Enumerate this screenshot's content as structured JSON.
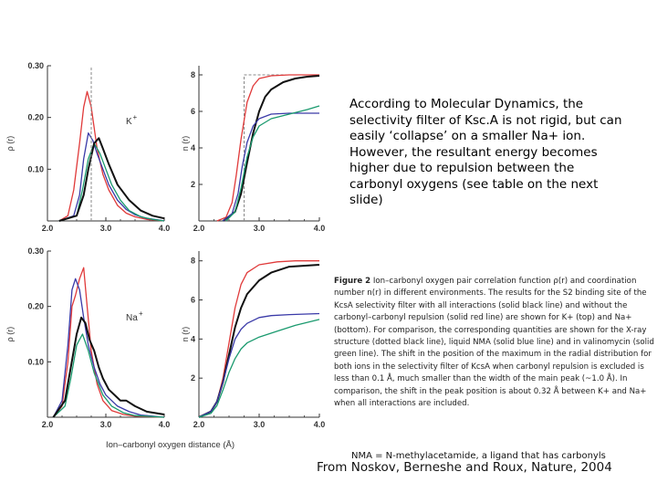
{
  "chart_data": [
    {
      "id": "rho-K",
      "type": "line",
      "ylabel": "ρ (r)",
      "label": "K",
      "label_sup": "+",
      "xlim": [
        2.0,
        4.0
      ],
      "ylim": [
        0,
        0.3
      ],
      "xticks": [
        "2.0",
        "3.0",
        "4.0"
      ],
      "yticks": [
        {
          "v": 0.1,
          "t": "0.10"
        },
        {
          "v": 0.2,
          "t": "0.20"
        },
        {
          "v": 0.3,
          "t": "0.30"
        }
      ],
      "series": [
        {
          "color": "#e03a3a",
          "dashed": false,
          "x": [
            2.2,
            2.35,
            2.45,
            2.55,
            2.62,
            2.68,
            2.75,
            2.85,
            2.95,
            3.05,
            3.2,
            3.35,
            3.5,
            3.7,
            3.9,
            4.0
          ],
          "y": [
            0,
            0.01,
            0.06,
            0.15,
            0.22,
            0.25,
            0.22,
            0.14,
            0.09,
            0.06,
            0.03,
            0.015,
            0.008,
            0.003,
            0.001,
            0
          ]
        },
        {
          "color": "#3a3aa8",
          "dashed": false,
          "x": [
            2.2,
            2.45,
            2.55,
            2.62,
            2.7,
            2.78,
            2.85,
            2.95,
            3.05,
            3.2,
            3.35,
            3.5,
            3.7,
            3.9,
            4.0
          ],
          "y": [
            0,
            0.01,
            0.05,
            0.12,
            0.17,
            0.155,
            0.13,
            0.1,
            0.07,
            0.04,
            0.022,
            0.012,
            0.005,
            0.002,
            0
          ]
        },
        {
          "color": "#1a9a6e",
          "dashed": false,
          "x": [
            2.2,
            2.5,
            2.6,
            2.7,
            2.8,
            2.9,
            3.0,
            3.1,
            3.25,
            3.4,
            3.6,
            3.8,
            4.0
          ],
          "y": [
            0,
            0.01,
            0.06,
            0.12,
            0.15,
            0.13,
            0.1,
            0.07,
            0.04,
            0.02,
            0.008,
            0.003,
            0
          ]
        },
        {
          "color": "#111111",
          "dashed": false,
          "x": [
            2.2,
            2.5,
            2.62,
            2.7,
            2.8,
            2.88,
            2.95,
            3.05,
            3.2,
            3.4,
            3.6,
            3.8,
            4.0
          ],
          "y": [
            0,
            0.01,
            0.05,
            0.1,
            0.15,
            0.16,
            0.14,
            0.11,
            0.07,
            0.04,
            0.02,
            0.01,
            0.005
          ]
        },
        {
          "color": "#888888",
          "dashed": true,
          "x": [
            2.75,
            2.75
          ],
          "y": [
            0,
            0.3
          ]
        }
      ]
    },
    {
      "id": "n-K",
      "type": "line",
      "ylabel": "n (r)",
      "xlim": [
        2.0,
        4.0
      ],
      "ylim": [
        0,
        8.5
      ],
      "xticks": [
        "2.0",
        "3.0",
        "4.0"
      ],
      "yticks": [
        {
          "v": 2,
          "t": "2"
        },
        {
          "v": 4,
          "t": "4"
        },
        {
          "v": 6,
          "t": "6"
        },
        {
          "v": 8,
          "t": "8"
        }
      ],
      "series": [
        {
          "color": "#888888",
          "dashed": true,
          "x": [
            2.75,
            2.75,
            3.0,
            4.0
          ],
          "y": [
            0,
            8,
            8,
            8
          ]
        },
        {
          "color": "#e03a3a",
          "dashed": false,
          "x": [
            2.3,
            2.45,
            2.55,
            2.62,
            2.7,
            2.8,
            2.9,
            3.0,
            3.2,
            3.5,
            4.0
          ],
          "y": [
            0,
            0.2,
            1.0,
            2.5,
            4.5,
            6.5,
            7.4,
            7.8,
            7.95,
            8.0,
            8.0
          ]
        },
        {
          "color": "#111111",
          "dashed": false,
          "x": [
            2.4,
            2.6,
            2.7,
            2.8,
            2.9,
            3.0,
            3.1,
            3.2,
            3.4,
            3.6,
            3.8,
            4.0
          ],
          "y": [
            0,
            0.5,
            1.5,
            3.2,
            4.8,
            6.0,
            6.8,
            7.2,
            7.6,
            7.8,
            7.9,
            7.95
          ]
        },
        {
          "color": "#3a3aa8",
          "dashed": false,
          "x": [
            2.4,
            2.55,
            2.65,
            2.72,
            2.8,
            2.9,
            3.0,
            3.2,
            3.5,
            4.0
          ],
          "y": [
            0,
            0.4,
            1.5,
            3.0,
            4.3,
            5.2,
            5.6,
            5.85,
            5.9,
            5.9
          ]
        },
        {
          "color": "#1a9a6e",
          "dashed": false,
          "x": [
            2.45,
            2.6,
            2.7,
            2.8,
            2.9,
            3.0,
            3.2,
            3.5,
            3.8,
            4.0
          ],
          "y": [
            0,
            0.5,
            1.8,
            3.5,
            4.6,
            5.2,
            5.6,
            5.85,
            6.1,
            6.3
          ]
        }
      ]
    },
    {
      "id": "rho-Na",
      "type": "line",
      "ylabel": "ρ (r)",
      "label": "Na",
      "label_sup": "+",
      "xlim": [
        2.0,
        4.0
      ],
      "ylim": [
        0,
        0.3
      ],
      "xticks": [
        "2.0",
        "3.0",
        "4.0"
      ],
      "yticks": [
        {
          "v": 0.1,
          "t": "0.10"
        },
        {
          "v": 0.2,
          "t": "0.20"
        },
        {
          "v": 0.3,
          "t": "0.30"
        }
      ],
      "series": [
        {
          "color": "#e03a3a",
          "dashed": false,
          "x": [
            2.1,
            2.25,
            2.35,
            2.42,
            2.48,
            2.55,
            2.62,
            2.68,
            2.75,
            2.85,
            2.95,
            3.1,
            3.3,
            3.5,
            4.0
          ],
          "y": [
            0,
            0.02,
            0.1,
            0.2,
            0.22,
            0.25,
            0.27,
            0.2,
            0.12,
            0.06,
            0.03,
            0.012,
            0.005,
            0.002,
            0
          ]
        },
        {
          "color": "#3a3aa8",
          "dashed": false,
          "x": [
            2.1,
            2.25,
            2.35,
            2.42,
            2.48,
            2.55,
            2.62,
            2.7,
            2.8,
            2.9,
            3.0,
            3.2,
            3.4,
            3.6,
            4.0
          ],
          "y": [
            0,
            0.03,
            0.13,
            0.23,
            0.25,
            0.23,
            0.18,
            0.13,
            0.09,
            0.06,
            0.04,
            0.02,
            0.01,
            0.004,
            0
          ]
        },
        {
          "color": "#1a9a6e",
          "dashed": false,
          "x": [
            2.1,
            2.3,
            2.4,
            2.5,
            2.6,
            2.7,
            2.8,
            2.95,
            3.1,
            3.3,
            3.5,
            4.0
          ],
          "y": [
            0,
            0.02,
            0.07,
            0.13,
            0.15,
            0.12,
            0.08,
            0.04,
            0.02,
            0.008,
            0.003,
            0
          ]
        },
        {
          "color": "#111111",
          "dashed": false,
          "x": [
            2.1,
            2.3,
            2.4,
            2.5,
            2.58,
            2.65,
            2.72,
            2.8,
            2.88,
            2.95,
            3.05,
            3.15,
            3.25,
            3.35,
            3.5,
            3.6,
            3.7,
            4.0
          ],
          "y": [
            0,
            0.03,
            0.09,
            0.15,
            0.18,
            0.17,
            0.14,
            0.12,
            0.09,
            0.07,
            0.05,
            0.04,
            0.03,
            0.03,
            0.02,
            0.015,
            0.01,
            0.005
          ]
        }
      ]
    },
    {
      "id": "n-Na",
      "type": "line",
      "ylabel": "n (r)",
      "xlim": [
        2.0,
        4.0
      ],
      "ylim": [
        0,
        8.5
      ],
      "xticks": [
        "2.0",
        "3.0",
        "4.0"
      ],
      "yticks": [
        {
          "v": 2,
          "t": "2"
        },
        {
          "v": 4,
          "t": "4"
        },
        {
          "v": 6,
          "t": "6"
        },
        {
          "v": 8,
          "t": "8"
        }
      ],
      "series": [
        {
          "color": "#e03a3a",
          "dashed": false,
          "x": [
            2.0,
            2.2,
            2.3,
            2.4,
            2.5,
            2.6,
            2.7,
            2.8,
            3.0,
            3.3,
            3.6,
            4.0
          ],
          "y": [
            0,
            0.3,
            0.8,
            2.0,
            3.8,
            5.6,
            6.8,
            7.4,
            7.8,
            7.95,
            8.0,
            8.0
          ]
        },
        {
          "color": "#111111",
          "dashed": false,
          "x": [
            2.0,
            2.2,
            2.3,
            2.4,
            2.5,
            2.6,
            2.7,
            2.8,
            3.0,
            3.2,
            3.5,
            4.0
          ],
          "y": [
            0,
            0.3,
            0.8,
            1.8,
            3.2,
            4.6,
            5.6,
            6.3,
            7.0,
            7.4,
            7.7,
            7.8
          ]
        },
        {
          "color": "#3a3aa8",
          "dashed": false,
          "x": [
            2.0,
            2.2,
            2.3,
            2.4,
            2.5,
            2.6,
            2.7,
            2.8,
            3.0,
            3.2,
            3.5,
            4.0
          ],
          "y": [
            0,
            0.3,
            0.8,
            1.8,
            3.0,
            4.0,
            4.5,
            4.8,
            5.1,
            5.2,
            5.25,
            5.3
          ]
        },
        {
          "color": "#1a9a6e",
          "dashed": false,
          "x": [
            2.0,
            2.2,
            2.3,
            2.4,
            2.5,
            2.6,
            2.7,
            2.8,
            3.0,
            3.3,
            3.6,
            4.0
          ],
          "y": [
            0,
            0.2,
            0.6,
            1.4,
            2.3,
            3.0,
            3.5,
            3.8,
            4.1,
            4.4,
            4.7,
            5.0
          ]
        }
      ]
    }
  ],
  "xlabel": "Ion–carbonyl oxygen distance (Å)",
  "description": "According to Molecular Dynamics, the selectivity filter of Ksc.A is not rigid, but can easily ‘collapse’ on a smaller Na+ ion. However, the resultant energy becomes higher due to repulsion between the carbonyl oxygens (see table on the next slide)",
  "caption": {
    "title": "Figure 2",
    "text": "Ion–carbonyl oxygen pair correlation function ρ(r) and coordination number n(r) in different environments. The results for the S2 binding site of the KcsA selectivity filter with all interactions (solid black line) and without the carbonyl–carbonyl repulsion (solid red line) are shown for K+ (top) and Na+ (bottom). For comparison, the corresponding quantities are shown for the X-ray structure (dotted black line), liquid NMA (solid blue line) and in valinomycin (solid green line). The shift in the position of the maximum in the radial distribution for both ions in the selectivity filter of KcsA when carbonyl repulsion is excluded is less than 0.1 Å, much smaller than the width of the main peak (~1.0 Å). In comparison, the shift in the peak position is about 0.32 Å between K+ and Na+ when all interactions are included."
  },
  "nma_note": "NMA = N-methylacetamide, a ligand that has carbonyls",
  "citation": "From Noskov, Berneshe and Roux, Nature, 2004"
}
